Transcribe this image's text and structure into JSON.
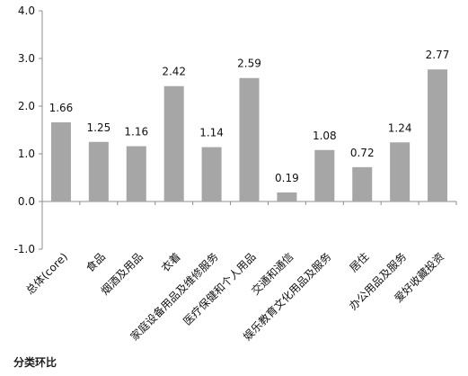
{
  "chart_data": {
    "type": "bar",
    "categories": [
      "总体(core)",
      "食品",
      "烟酒及用品",
      "衣着",
      "家庭设备用品及维修服务",
      "医疗保健和个人用品",
      "交通和通信",
      "娱乐教育文化用品及服务",
      "居住",
      "办公用品及服务",
      "爱好收藏投资"
    ],
    "values": [
      1.66,
      1.25,
      1.16,
      2.42,
      1.14,
      2.59,
      0.19,
      1.08,
      0.72,
      1.24,
      2.77
    ],
    "value_labels": [
      "1.66",
      "1.25",
      "1.16",
      "2.42",
      "1.14",
      "2.59",
      "0.19",
      "1.08",
      "0.72",
      "1.24",
      "2.77"
    ],
    "title": "",
    "caption": "分类环比",
    "xlabel": "",
    "ylabel": "",
    "ylim": [
      -1.0,
      4.0
    ],
    "yticks": [
      "-1.0",
      "0.0",
      "1.0",
      "2.0",
      "3.0",
      "4.0"
    ],
    "grid": false,
    "legend": "none",
    "bar_color": "#a6a6a6",
    "axis_color": "#8c8c8c"
  }
}
